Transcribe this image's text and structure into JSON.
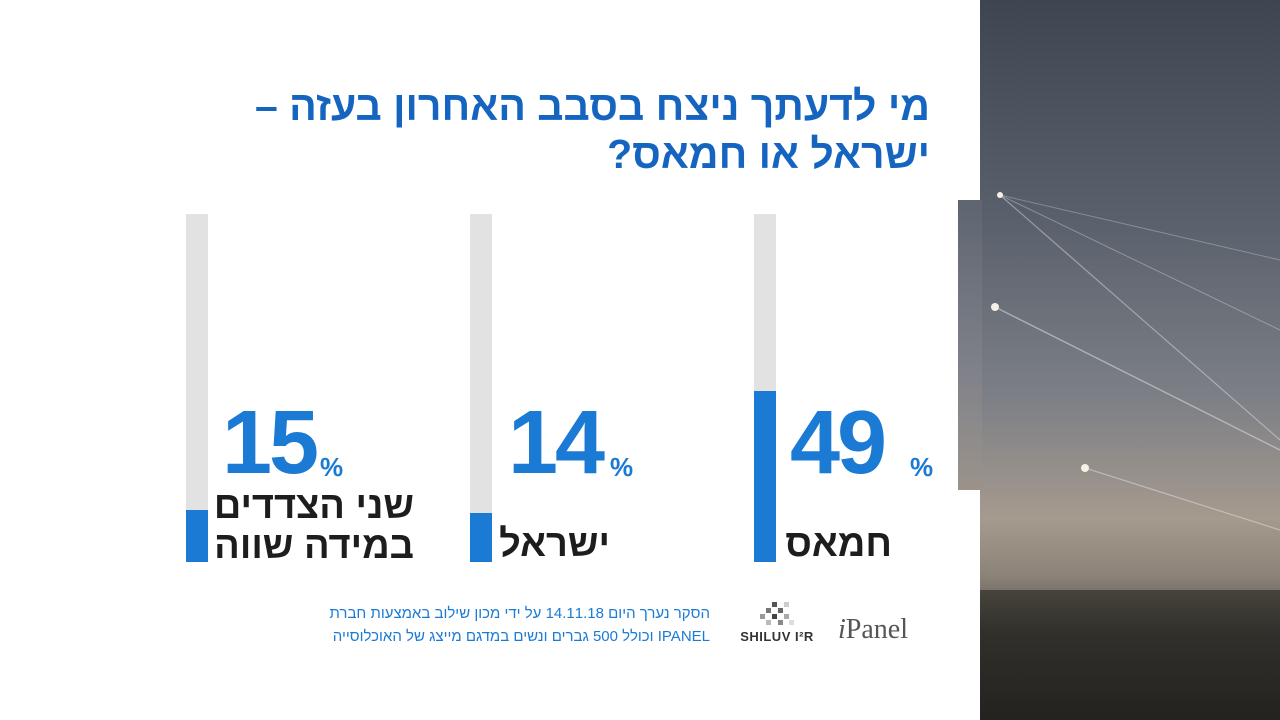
{
  "title": {
    "line1": "מי לדעתך ניצח בסבב האחרון בעזה –",
    "line2": "ישראל או חמאס?"
  },
  "chart_data": {
    "type": "bar",
    "categories": [
      "חמאס",
      "ישראל",
      "שני הצדדים במידה שווה"
    ],
    "values": [
      49,
      14,
      15
    ],
    "unit": "%",
    "ylim": [
      0,
      100
    ]
  },
  "bars": [
    {
      "value_text": "49",
      "unit": "%",
      "label_lines": [
        "חמאס"
      ]
    },
    {
      "value_text": "14",
      "unit": "%",
      "label_lines": [
        "ישראל"
      ]
    },
    {
      "value_text": "15",
      "unit": "%",
      "label_lines": [
        "שני הצדדים",
        "במידה שווה"
      ]
    }
  ],
  "footnote": {
    "line1": "הסקר נערך היום 14.11.18 על ידי מכון שילוב באמצעות חברת",
    "line2": "IPANEL וכולל 500 גברים ונשים במדגם מייצג של האוכלוסייה"
  },
  "logos": {
    "shiluv": "SHILUV I²R",
    "ipanel_prefix": "i",
    "ipanel_rest": "Panel"
  },
  "colors": {
    "accent": "#1a7ad4",
    "title": "#1565c0",
    "track": "#e2e2e2"
  }
}
